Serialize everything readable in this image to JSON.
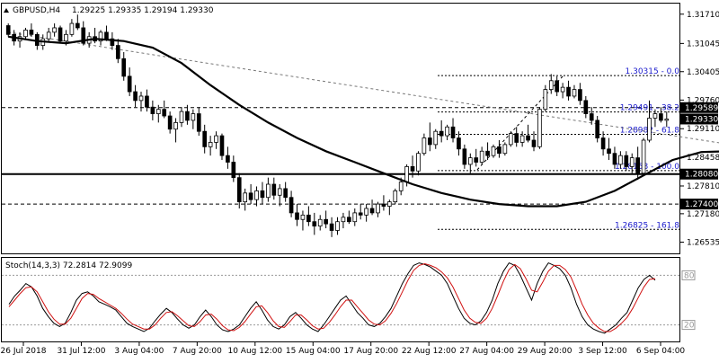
{
  "header": {
    "symbol": "GBPUSD,H4",
    "ohlc": "1.29225 1.29335 1.29194 1.29330"
  },
  "stoch_header": {
    "label": "Stoch(14,3,3) 72.2814 72.9099"
  },
  "chart_data": {
    "type": "candlestick",
    "price_axis": {
      "range": [
        1.2628,
        1.3195
      ],
      "ticks": [
        "1.31710",
        "1.31045",
        "1.30405",
        "1.29760",
        "1.29110",
        "1.28458",
        "1.27810",
        "1.27180",
        "1.26535"
      ]
    },
    "price_tags": [
      {
        "label": "1.29589",
        "value": 1.29589
      },
      {
        "label": "1.29330",
        "value": 1.2933
      },
      {
        "label": "1.28080",
        "value": 1.2808
      },
      {
        "label": "1.27400",
        "value": 1.274
      }
    ],
    "time_labels": [
      "26 Jul 2018",
      "31 Jul 12:00",
      "3 Aug 04:00",
      "7 Aug 20:00",
      "10 Aug 12:00",
      "15 Aug 04:00",
      "17 Aug 20:00",
      "22 Aug 12:00",
      "27 Aug 04:00",
      "29 Aug 20:00",
      "3 Sep 12:00",
      "6 Sep 04:00"
    ],
    "horizontal_levels": [
      {
        "value": 1.2808,
        "style": "solid"
      },
      {
        "value": 1.29589,
        "style": "dashed"
      },
      {
        "value": 1.274,
        "style": "dashed"
      }
    ],
    "fibonacci": [
      {
        "label": "1.30315 - 0.0",
        "value": 1.30315
      },
      {
        "label": "1.29491 - 38.2",
        "value": 1.29491
      },
      {
        "label": "1.28982 - 61.8",
        "value": 1.28982
      },
      {
        "label": "1.28158 - 100.0",
        "value": 1.28158
      },
      {
        "label": "1.26825 - 161.8",
        "value": 1.26825
      }
    ],
    "trendline": {
      "from": [
        0,
        1.313
      ],
      "to": [
        205,
        1.2713
      ]
    },
    "moving_average": [
      [
        0,
        1.312
      ],
      [
        5,
        1.311
      ],
      [
        10,
        1.3105
      ],
      [
        15,
        1.3115
      ],
      [
        20,
        1.311
      ],
      [
        25,
        1.3095
      ],
      [
        30,
        1.306
      ],
      [
        35,
        1.301
      ],
      [
        40,
        1.2965
      ],
      [
        45,
        1.2925
      ],
      [
        50,
        1.289
      ],
      [
        55,
        1.286
      ],
      [
        60,
        1.2835
      ],
      [
        65,
        1.281
      ],
      [
        70,
        1.2785
      ],
      [
        75,
        1.2765
      ],
      [
        80,
        1.275
      ],
      [
        85,
        1.274
      ],
      [
        90,
        1.2735
      ],
      [
        95,
        1.2735
      ],
      [
        100,
        1.2745
      ],
      [
        105,
        1.277
      ],
      [
        110,
        1.2805
      ],
      [
        115,
        1.284
      ],
      [
        120,
        1.2858
      ],
      [
        125,
        1.286
      ],
      [
        130,
        1.2855
      ],
      [
        135,
        1.2855
      ],
      [
        140,
        1.286
      ],
      [
        145,
        1.2868
      ],
      [
        150,
        1.2895
      ],
      [
        155,
        1.2925
      ],
      [
        160,
        1.295
      ],
      [
        165,
        1.295
      ],
      [
        170,
        1.293
      ],
      [
        175,
        1.2905
      ],
      [
        180,
        1.288
      ],
      [
        185,
        1.2872
      ],
      [
        190,
        1.288
      ],
      [
        195,
        1.2895
      ]
    ],
    "candles": [
      [
        1.3145,
        1.315,
        1.312,
        1.3125
      ],
      [
        1.3125,
        1.3135,
        1.31,
        1.311
      ],
      [
        1.311,
        1.313,
        1.3095,
        1.312
      ],
      [
        1.312,
        1.314,
        1.3115,
        1.3135
      ],
      [
        1.3135,
        1.315,
        1.312,
        1.3125
      ],
      [
        1.3125,
        1.313,
        1.309,
        1.31
      ],
      [
        1.31,
        1.3125,
        1.309,
        1.3115
      ],
      [
        1.3115,
        1.314,
        1.311,
        1.313
      ],
      [
        1.313,
        1.315,
        1.312,
        1.314
      ],
      [
        1.314,
        1.3145,
        1.3105,
        1.311
      ],
      [
        1.311,
        1.3135,
        1.31,
        1.3125
      ],
      [
        1.3125,
        1.316,
        1.312,
        1.315
      ],
      [
        1.315,
        1.317,
        1.3135,
        1.314
      ],
      [
        1.314,
        1.3155,
        1.31,
        1.3105
      ],
      [
        1.3105,
        1.313,
        1.3095,
        1.312
      ],
      [
        1.312,
        1.314,
        1.3105,
        1.311
      ],
      [
        1.311,
        1.3135,
        1.31,
        1.313
      ],
      [
        1.313,
        1.3145,
        1.311,
        1.3115
      ],
      [
        1.3115,
        1.313,
        1.309,
        1.31
      ],
      [
        1.31,
        1.3115,
        1.306,
        1.307
      ],
      [
        1.307,
        1.3085,
        1.302,
        1.303
      ],
      [
        1.303,
        1.305,
        1.2985,
        1.2995
      ],
      [
        1.2995,
        1.301,
        1.296,
        1.2975
      ],
      [
        1.2975,
        1.2995,
        1.295,
        1.2985
      ],
      [
        1.2985,
        1.3,
        1.295,
        1.296
      ],
      [
        1.296,
        1.2975,
        1.293,
        1.2945
      ],
      [
        1.2945,
        1.2965,
        1.2925,
        1.2955
      ],
      [
        1.2955,
        1.2975,
        1.2935,
        1.294
      ],
      [
        1.294,
        1.295,
        1.29,
        1.291
      ],
      [
        1.291,
        1.2935,
        1.288,
        1.2925
      ],
      [
        1.2925,
        1.296,
        1.2915,
        1.295
      ],
      [
        1.295,
        1.2965,
        1.292,
        1.293
      ],
      [
        1.293,
        1.2955,
        1.291,
        1.2945
      ],
      [
        1.2945,
        1.296,
        1.2895,
        1.2905
      ],
      [
        1.2905,
        1.292,
        1.2855,
        1.287
      ],
      [
        1.287,
        1.2895,
        1.285,
        1.288
      ],
      [
        1.288,
        1.2905,
        1.2865,
        1.2895
      ],
      [
        1.2895,
        1.29,
        1.284,
        1.285
      ],
      [
        1.285,
        1.287,
        1.282,
        1.2835
      ],
      [
        1.2835,
        1.285,
        1.279,
        1.28
      ],
      [
        1.28,
        1.281,
        1.273,
        1.2745
      ],
      [
        1.2745,
        1.2775,
        1.2725,
        1.2765
      ],
      [
        1.2765,
        1.2785,
        1.274,
        1.275
      ],
      [
        1.275,
        1.278,
        1.2735,
        1.277
      ],
      [
        1.277,
        1.279,
        1.274,
        1.2755
      ],
      [
        1.2755,
        1.28,
        1.2745,
        1.2785
      ],
      [
        1.2785,
        1.28,
        1.275,
        1.276
      ],
      [
        1.276,
        1.2785,
        1.2735,
        1.2775
      ],
      [
        1.2775,
        1.279,
        1.2745,
        1.2755
      ],
      [
        1.2755,
        1.277,
        1.271,
        1.272
      ],
      [
        1.272,
        1.274,
        1.269,
        1.2705
      ],
      [
        1.2705,
        1.2725,
        1.268,
        1.2715
      ],
      [
        1.2715,
        1.2735,
        1.269,
        1.27
      ],
      [
        1.27,
        1.272,
        1.267,
        1.269
      ],
      [
        1.269,
        1.2715,
        1.268,
        1.2705
      ],
      [
        1.2705,
        1.2725,
        1.2685,
        1.2695
      ],
      [
        1.2695,
        1.271,
        1.2665,
        1.268
      ],
      [
        1.268,
        1.271,
        1.267,
        1.27
      ],
      [
        1.27,
        1.272,
        1.2685,
        1.271
      ],
      [
        1.271,
        1.2725,
        1.2695,
        1.27
      ],
      [
        1.27,
        1.273,
        1.269,
        1.272
      ],
      [
        1.272,
        1.274,
        1.2705,
        1.2715
      ],
      [
        1.2715,
        1.274,
        1.27,
        1.273
      ],
      [
        1.273,
        1.275,
        1.2715,
        1.272
      ],
      [
        1.272,
        1.2745,
        1.271,
        1.274
      ],
      [
        1.274,
        1.276,
        1.2725,
        1.2735
      ],
      [
        1.2735,
        1.275,
        1.2715,
        1.2745
      ],
      [
        1.2745,
        1.2775,
        1.274,
        1.277
      ],
      [
        1.277,
        1.28,
        1.276,
        1.279
      ],
      [
        1.279,
        1.283,
        1.278,
        1.2825
      ],
      [
        1.2825,
        1.285,
        1.28,
        1.2815
      ],
      [
        1.2815,
        1.286,
        1.2805,
        1.2855
      ],
      [
        1.2855,
        1.29,
        1.285,
        1.289
      ],
      [
        1.289,
        1.2925,
        1.286,
        1.2875
      ],
      [
        1.2875,
        1.291,
        1.2865,
        1.2905
      ],
      [
        1.2905,
        1.293,
        1.288,
        1.2895
      ],
      [
        1.2895,
        1.292,
        1.2885,
        1.2915
      ],
      [
        1.2915,
        1.2935,
        1.288,
        1.289
      ],
      [
        1.289,
        1.2905,
        1.285,
        1.2865
      ],
      [
        1.2865,
        1.2875,
        1.282,
        1.283
      ],
      [
        1.283,
        1.2855,
        1.281,
        1.2845
      ],
      [
        1.2845,
        1.2865,
        1.2825,
        1.2835
      ],
      [
        1.2835,
        1.287,
        1.283,
        1.286
      ],
      [
        1.286,
        1.288,
        1.284,
        1.285
      ],
      [
        1.285,
        1.2875,
        1.2845,
        1.287
      ],
      [
        1.287,
        1.2885,
        1.2845,
        1.2855
      ],
      [
        1.2855,
        1.288,
        1.285,
        1.2875
      ],
      [
        1.2875,
        1.2905,
        1.287,
        1.29
      ],
      [
        1.29,
        1.2915,
        1.287,
        1.288
      ],
      [
        1.288,
        1.2905,
        1.287,
        1.2895
      ],
      [
        1.2895,
        1.292,
        1.288,
        1.2885
      ],
      [
        1.2885,
        1.2905,
        1.286,
        1.287
      ],
      [
        1.287,
        1.296,
        1.2865,
        1.2955
      ],
      [
        1.2955,
        1.301,
        1.295,
        1.3
      ],
      [
        1.3,
        1.3035,
        1.299,
        1.302
      ],
      [
        1.302,
        1.303,
        1.2985,
        1.2995
      ],
      [
        1.2995,
        1.3015,
        1.298,
        1.3005
      ],
      [
        1.3005,
        1.302,
        1.2975,
        1.2985
      ],
      [
        1.2985,
        1.301,
        1.298,
        1.3
      ],
      [
        1.3,
        1.3015,
        1.2965,
        1.2975
      ],
      [
        1.2975,
        1.2985,
        1.2935,
        1.2945
      ],
      [
        1.2945,
        1.296,
        1.292,
        1.293
      ],
      [
        1.293,
        1.294,
        1.288,
        1.289
      ],
      [
        1.289,
        1.2905,
        1.285,
        1.2865
      ],
      [
        1.2865,
        1.289,
        1.284,
        1.2855
      ],
      [
        1.2855,
        1.287,
        1.282,
        1.283
      ],
      [
        1.283,
        1.286,
        1.282,
        1.285
      ],
      [
        1.285,
        1.286,
        1.2815,
        1.2825
      ],
      [
        1.2825,
        1.2855,
        1.281,
        1.2845
      ],
      [
        1.2845,
        1.287,
        1.2795,
        1.281
      ],
      [
        1.281,
        1.289,
        1.2805,
        1.2885
      ],
      [
        1.2885,
        1.2975,
        1.288,
        1.2935
      ],
      [
        1.2935,
        1.2955,
        1.2915,
        1.2945
      ],
      [
        1.2945,
        1.296,
        1.2925,
        1.293
      ],
      [
        1.293,
        1.295,
        1.2915,
        1.2933
      ]
    ],
    "stochastic": {
      "ticks": [
        {
          "label": "80",
          "value": 80
        },
        {
          "label": "20",
          "value": 20
        }
      ],
      "k": [
        45,
        55,
        62,
        70,
        66,
        55,
        40,
        30,
        22,
        18,
        22,
        35,
        50,
        58,
        60,
        55,
        48,
        45,
        42,
        38,
        30,
        22,
        18,
        15,
        12,
        16,
        25,
        33,
        40,
        35,
        27,
        20,
        16,
        20,
        30,
        38,
        30,
        20,
        14,
        12,
        15,
        20,
        30,
        40,
        48,
        38,
        26,
        18,
        15,
        20,
        30,
        35,
        28,
        20,
        15,
        12,
        20,
        30,
        40,
        50,
        55,
        45,
        35,
        28,
        20,
        18,
        22,
        30,
        40,
        55,
        70,
        82,
        92,
        95,
        93,
        90,
        85,
        80,
        70,
        55,
        40,
        28,
        22,
        20,
        25,
        35,
        50,
        70,
        85,
        95,
        92,
        80,
        65,
        50,
        70,
        85,
        95,
        92,
        88,
        80,
        65,
        45,
        30,
        20,
        15,
        12,
        10,
        15,
        20,
        28,
        35,
        50,
        65,
        75,
        80,
        74
      ],
      "d": [
        42,
        50,
        58,
        65,
        66,
        60,
        48,
        36,
        27,
        21,
        21,
        28,
        40,
        52,
        58,
        57,
        52,
        48,
        44,
        40,
        34,
        27,
        21,
        18,
        15,
        15,
        20,
        28,
        35,
        36,
        31,
        25,
        19,
        18,
        24,
        32,
        33,
        27,
        19,
        14,
        13,
        17,
        24,
        33,
        42,
        43,
        35,
        25,
        18,
        17,
        24,
        32,
        32,
        26,
        19,
        15,
        16,
        23,
        32,
        42,
        50,
        50,
        42,
        34,
        26,
        21,
        20,
        25,
        34,
        46,
        60,
        74,
        86,
        92,
        94,
        92,
        89,
        84,
        77,
        66,
        52,
        38,
        28,
        23,
        22,
        28,
        40,
        56,
        73,
        87,
        93,
        88,
        76,
        62,
        60,
        72,
        85,
        92,
        92,
        87,
        78,
        62,
        45,
        32,
        22,
        16,
        12,
        12,
        16,
        22,
        29,
        40,
        53,
        66,
        75,
        76
      ]
    }
  }
}
